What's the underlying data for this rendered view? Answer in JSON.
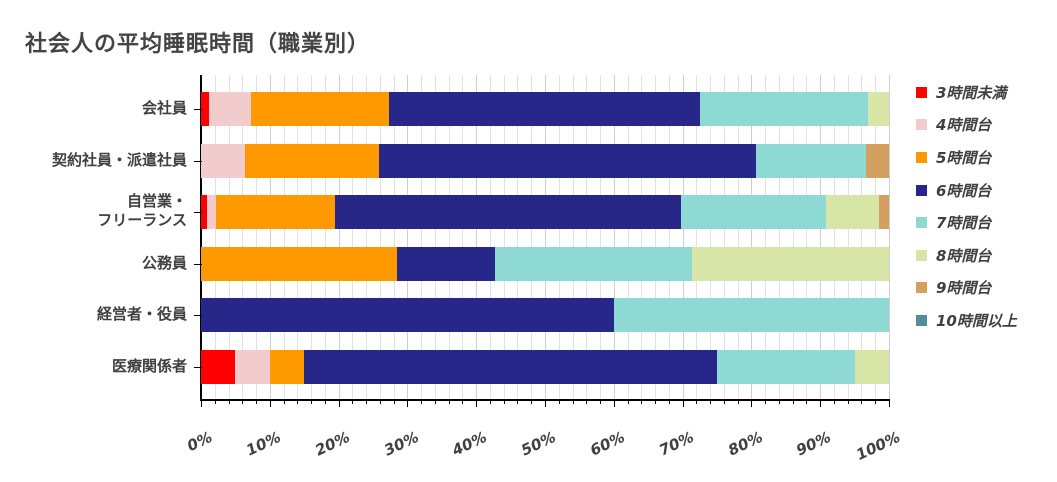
{
  "chart_data": {
    "type": "bar",
    "orientation": "horizontal",
    "stacked": "percent",
    "title": "社会人の平均睡眠時間（職業別）",
    "xlabel": "",
    "ylabel": "",
    "xlim": [
      0,
      100
    ],
    "x_ticks": [
      "0%",
      "10%",
      "20%",
      "30%",
      "40%",
      "50%",
      "60%",
      "70%",
      "80%",
      "90%",
      "100%"
    ],
    "grid": true,
    "legend_position": "right",
    "categories": [
      "会社員",
      "契約社員・派遣社員",
      "自営業・\nフリーランス",
      "公務員",
      "経営者・役員",
      "医療関係者"
    ],
    "category_lines": [
      [
        "会社員"
      ],
      [
        "契約社員・派遣社員"
      ],
      [
        "自営業・",
        "フリーランス"
      ],
      [
        "公務員"
      ],
      [
        "経営者・役員"
      ],
      [
        "医療関係者"
      ]
    ],
    "series": [
      {
        "name": "3時間未満",
        "color": "#ff0000",
        "values": [
          1.2,
          0,
          0.8,
          0,
          0,
          5
        ]
      },
      {
        "name": "4時間台",
        "color": "#f2cccc",
        "values": [
          6.1,
          6.4,
          1.4,
          0,
          0,
          5
        ]
      },
      {
        "name": "5時間台",
        "color": "#ff9900",
        "values": [
          20.1,
          19.4,
          17.3,
          28.5,
          0,
          5
        ]
      },
      {
        "name": "6時間台",
        "color": "#27278a",
        "values": [
          45.2,
          54.8,
          50.2,
          14.3,
          60,
          60
        ]
      },
      {
        "name": "7時間台",
        "color": "#8ed9d4",
        "values": [
          24.3,
          16.1,
          21.1,
          28.6,
          40,
          20
        ]
      },
      {
        "name": "8時間台",
        "color": "#d7e6a6",
        "values": [
          3.1,
          0,
          7.8,
          28.6,
          0,
          5
        ]
      },
      {
        "name": "9時間台",
        "color": "#d3a060",
        "values": [
          0,
          3.3,
          1.4,
          0,
          0,
          0
        ]
      },
      {
        "name": "10時間以上",
        "color": "#4f8e9a",
        "values": [
          0,
          0,
          0,
          0,
          0,
          0
        ]
      }
    ]
  }
}
